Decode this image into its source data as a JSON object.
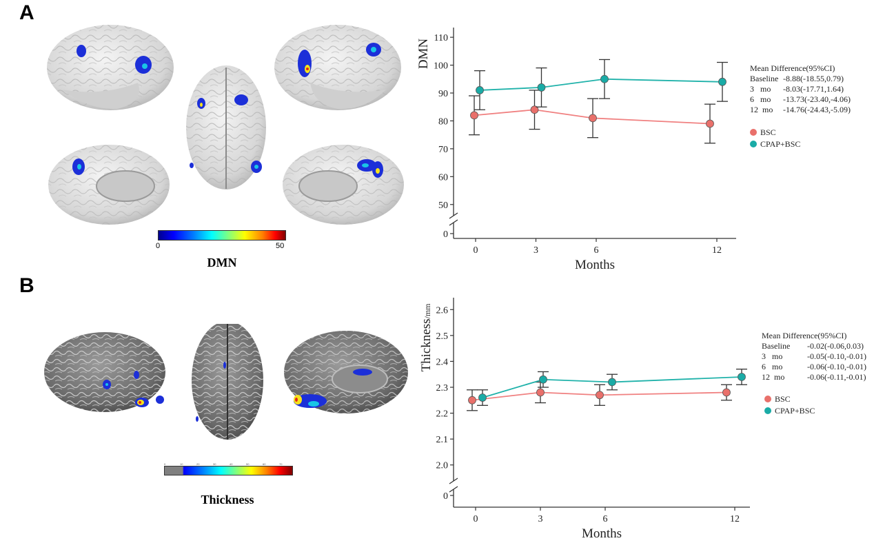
{
  "panel_a": {
    "letter": "A",
    "brain_title": "DMN",
    "colorbar": {
      "min_label": "0",
      "max_label": "50"
    }
  },
  "panel_b": {
    "letter": "B",
    "brain_title": "Thickness",
    "colorbar": {
      "ticks": [
        "0",
        "10",
        "20",
        "30",
        "40",
        "50",
        "60",
        "70"
      ]
    }
  },
  "colors": {
    "bsc": "#f08080",
    "cpap": "#20b2aa",
    "bsc_marker": "#e9706b",
    "cpap_marker": "#1aaba6",
    "axis": "#333333",
    "brain_light": "#dcdcdc",
    "brain_dark": "#6e6e6e",
    "blob_blue": "#1c2fd8",
    "blob_cyan": "#19c6e6",
    "blob_yellow": "#f6e21c",
    "blob_red": "#e32619"
  },
  "chart_data": [
    {
      "type": "line",
      "ylabel": "DMN",
      "xlabel": "Months",
      "x_ticks": [
        0,
        3,
        6,
        12
      ],
      "y_ticks": [
        50,
        60,
        70,
        80,
        90,
        100,
        110
      ],
      "y_break_tick": 0,
      "ylim": [
        45,
        112
      ],
      "series": [
        {
          "name": "BSC",
          "x": [
            0,
            3,
            6,
            12
          ],
          "values": [
            82,
            84,
            81,
            79
          ],
          "error": [
            7,
            7,
            7,
            7
          ]
        },
        {
          "name": "CPAP+BSC",
          "x": [
            0,
            3,
            6,
            12
          ],
          "values": [
            91,
            92,
            95,
            94
          ],
          "error": [
            7,
            7,
            7,
            7
          ]
        }
      ],
      "legend": {
        "position": "right",
        "entries": [
          "BSC",
          "CPAP+BSC"
        ]
      },
      "annotation": {
        "title": "Mean Difference(95%CI)",
        "rows": [
          {
            "label": "Baseline",
            "value": "-8.88(-18.55,0.79)"
          },
          {
            "label": "3   mo",
            "value": "-8.03(-17.71,1.64)"
          },
          {
            "label": "6   mo",
            "value": "-13.73(-23.40,-4.06)"
          },
          {
            "label": "12  mo",
            "value": "-14.76(-24.43,-5.09)"
          }
        ]
      }
    },
    {
      "type": "line",
      "ylabel_main": "Thickness",
      "ylabel_unit": "/mm",
      "xlabel": "Months",
      "x_ticks": [
        0,
        3,
        6,
        12
      ],
      "y_ticks": [
        "2.0",
        "2.1",
        "2.2",
        "2.3",
        "2.4",
        "2.5",
        "2.6"
      ],
      "y_break_tick": 0,
      "ylim": [
        1.97,
        2.63
      ],
      "series": [
        {
          "name": "BSC",
          "x": [
            0,
            3,
            6,
            12
          ],
          "values": [
            2.25,
            2.28,
            2.27,
            2.28
          ],
          "error": [
            0.04,
            0.04,
            0.04,
            0.03
          ]
        },
        {
          "name": "CPAP+BSC",
          "x": [
            0,
            3,
            6,
            12
          ],
          "values": [
            2.26,
            2.33,
            2.32,
            2.34
          ],
          "error": [
            0.03,
            0.03,
            0.03,
            0.03
          ]
        }
      ],
      "legend": {
        "position": "right",
        "entries": [
          "BSC",
          "CPAP+BSC"
        ]
      },
      "annotation": {
        "title": "Mean Difference(95%CI)",
        "rows": [
          {
            "label": "Baseline",
            "value": "-0.02(-0.06,0.03)"
          },
          {
            "label": "3   mo",
            "value": "-0.05(-0.10,-0.01)"
          },
          {
            "label": "6   mo",
            "value": "-0.06(-0.10,-0.01)"
          },
          {
            "label": "12  mo",
            "value": "-0.06(-0.11,-0.01)"
          }
        ]
      }
    }
  ]
}
